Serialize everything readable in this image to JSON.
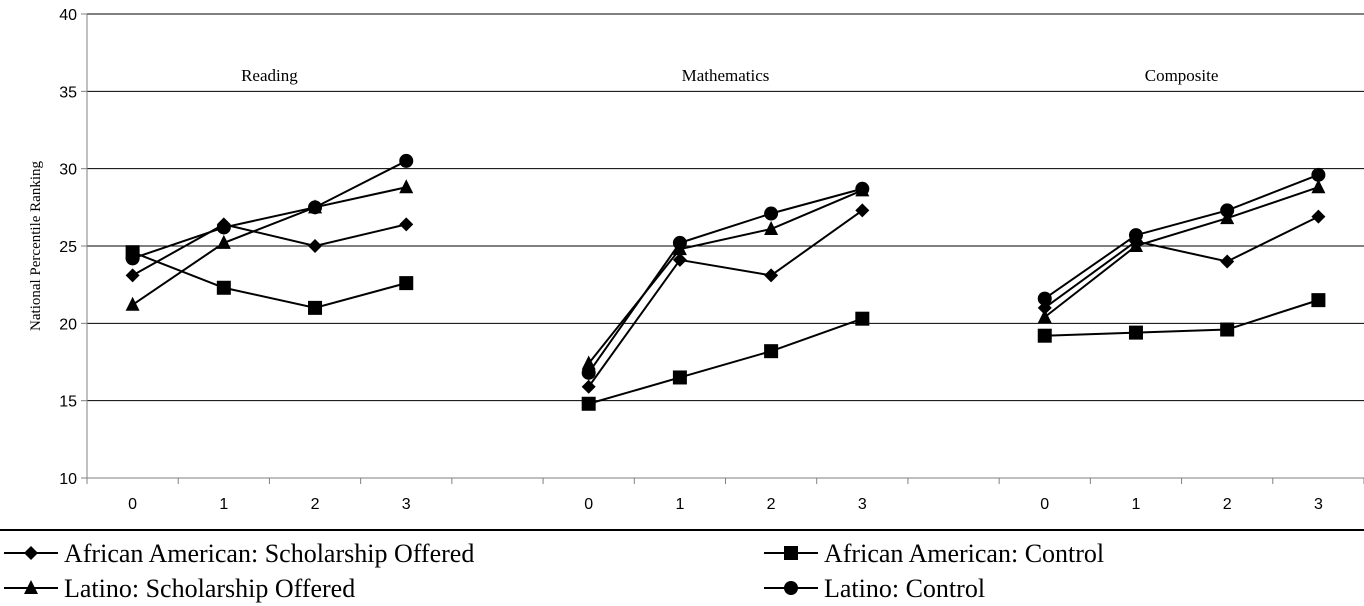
{
  "chart_data": {
    "type": "line",
    "ylabel": "National Percentile Ranking",
    "ylim": [
      10,
      40
    ],
    "yticks": [
      10,
      15,
      20,
      25,
      30,
      35,
      40
    ],
    "grid": "horizontal",
    "legend_placement": "bottom",
    "panels": [
      {
        "title": "Reading",
        "x": [
          "0",
          "1",
          "2",
          "3"
        ],
        "series": [
          {
            "name": "African American: Scholarship Offered",
            "marker": "diamond",
            "values": [
              23.1,
              26.4,
              25.0,
              26.4
            ]
          },
          {
            "name": "African American: Control",
            "marker": "square",
            "values": [
              24.6,
              22.3,
              21.0,
              22.6
            ]
          },
          {
            "name": "Latino: Scholarship Offered",
            "marker": "triangle",
            "values": [
              21.2,
              25.2,
              27.5,
              28.8
            ]
          },
          {
            "name": "Latino: Control",
            "marker": "circle",
            "values": [
              24.2,
              26.2,
              27.5,
              30.5
            ]
          }
        ]
      },
      {
        "title": "Mathematics",
        "x": [
          "0",
          "1",
          "2",
          "3"
        ],
        "series": [
          {
            "name": "African American: Scholarship Offered",
            "marker": "diamond",
            "values": [
              15.9,
              24.1,
              23.1,
              27.3
            ]
          },
          {
            "name": "African American: Control",
            "marker": "square",
            "values": [
              14.8,
              16.5,
              18.2,
              20.3
            ]
          },
          {
            "name": "Latino: Scholarship Offered",
            "marker": "triangle",
            "values": [
              17.4,
              24.8,
              26.1,
              28.6
            ]
          },
          {
            "name": "Latino: Control",
            "marker": "circle",
            "values": [
              16.8,
              25.2,
              27.1,
              28.7
            ]
          }
        ]
      },
      {
        "title": "Composite",
        "x": [
          "0",
          "1",
          "2",
          "3"
        ],
        "series": [
          {
            "name": "African American: Scholarship Offered",
            "marker": "diamond",
            "values": [
              21.0,
              25.3,
              24.0,
              26.9
            ]
          },
          {
            "name": "African American: Control",
            "marker": "square",
            "values": [
              19.2,
              19.4,
              19.6,
              21.5
            ]
          },
          {
            "name": "Latino: Scholarship Offered",
            "marker": "triangle",
            "values": [
              20.4,
              25.0,
              26.8,
              28.8
            ]
          },
          {
            "name": "Latino: Control",
            "marker": "circle",
            "values": [
              21.6,
              25.7,
              27.3,
              29.6
            ]
          }
        ]
      }
    ],
    "legend": [
      {
        "label": "African American: Scholarship Offered",
        "marker": "diamond"
      },
      {
        "label": "African American: Control",
        "marker": "square"
      },
      {
        "label": "Latino: Scholarship Offered",
        "marker": "triangle"
      },
      {
        "label": "Latino: Control",
        "marker": "circle"
      }
    ],
    "colors": {
      "line": "#000000",
      "grid": "#000000",
      "axis": "#808080",
      "background": "#ffffff"
    }
  }
}
